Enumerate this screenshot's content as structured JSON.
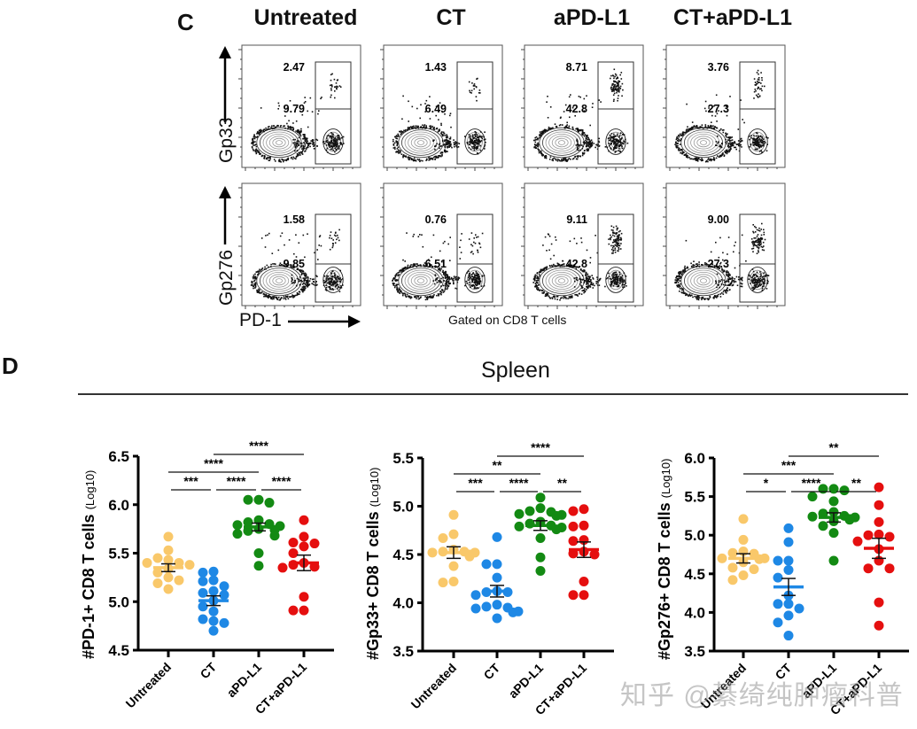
{
  "panel_c": {
    "letter": "C",
    "columns": [
      "Untreated",
      "CT",
      "aPD-L1",
      "CT+aPD-L1"
    ],
    "rows": [
      {
        "ylabel": "Gp33",
        "gates": [
          {
            "upper": "2.47",
            "lower": "9.79"
          },
          {
            "upper": "1.43",
            "lower": "6.49"
          },
          {
            "upper": "8.71",
            "lower": "42.8"
          },
          {
            "upper": "3.76",
            "lower": "27.3"
          }
        ]
      },
      {
        "ylabel": "Gp276",
        "gates": [
          {
            "upper": "1.58",
            "lower": "9.85"
          },
          {
            "upper": "0.76",
            "lower": "6.51"
          },
          {
            "upper": "9.11",
            "lower": "42.8"
          },
          {
            "upper": "9.00",
            "lower": "27.3"
          }
        ]
      }
    ],
    "xlabel": "PD-1",
    "gating_note": "Gated on CD8 T cells"
  },
  "panel_d": {
    "letter": "D",
    "section_title": "Spleen",
    "colors": {
      "Untreated": "#f9c86a",
      "CT": "#1e88e5",
      "aPD-L1": "#138a13",
      "CT+aPD-L1": "#e50f0f"
    }
  },
  "chart_data": [
    {
      "type": "scatter",
      "title": "",
      "ylabel_main": "#PD-1+ CD8 T cells",
      "ylabel_unit": "(Log10)",
      "categories": [
        "Untreated",
        "CT",
        "aPD-L1",
        "CT+aPD-L1"
      ],
      "ylim": [
        4.5,
        6.5
      ],
      "yticks": [
        "4.5",
        "5.0",
        "5.5",
        "6.0",
        "6.5"
      ],
      "yticks_values": [
        4.5,
        5.0,
        5.5,
        6.0,
        6.5
      ],
      "series": [
        {
          "name": "Untreated",
          "values": [
            5.67,
            5.53,
            5.45,
            5.43,
            5.4,
            5.4,
            5.38,
            5.34,
            5.3,
            5.25,
            5.22,
            5.19,
            5.13
          ],
          "mean": 5.35,
          "sem": 0.04
        },
        {
          "name": "CT",
          "values": [
            5.31,
            5.3,
            5.22,
            5.21,
            5.16,
            5.11,
            5.09,
            5.07,
            5.01,
            4.95,
            4.9,
            4.82,
            4.8,
            4.78,
            4.7
          ],
          "mean": 5.01,
          "sem": 0.05
        },
        {
          "name": "aPD-L1",
          "values": [
            6.05,
            6.05,
            6.02,
            5.84,
            5.82,
            5.8,
            5.79,
            5.78,
            5.75,
            5.74,
            5.73,
            5.7,
            5.68,
            5.5,
            5.37
          ],
          "mean": 5.77,
          "sem": 0.04
        },
        {
          "name": "CT+aPD-L1",
          "values": [
            5.84,
            5.67,
            5.61,
            5.6,
            5.57,
            5.5,
            5.4,
            5.38,
            5.36,
            5.35,
            5.05,
            4.91,
            4.91
          ],
          "mean": 5.4,
          "sem": 0.08
        }
      ],
      "significance": [
        {
          "from": "Untreated",
          "to": "CT",
          "label": "***",
          "level": 0
        },
        {
          "from": "CT",
          "to": "aPD-L1",
          "label": "****",
          "level": 0
        },
        {
          "from": "aPD-L1",
          "to": "CT+aPD-L1",
          "label": "****",
          "level": 0
        },
        {
          "from": "Untreated",
          "to": "aPD-L1",
          "label": "****",
          "level": 1
        },
        {
          "from": "CT",
          "to": "CT+aPD-L1",
          "label": "****",
          "level": 2
        }
      ]
    },
    {
      "type": "scatter",
      "title": "",
      "ylabel_main": "#Gp33+ CD8 T cells",
      "ylabel_unit": "(Log10)",
      "categories": [
        "Untreated",
        "CT",
        "aPD-L1",
        "CT+aPD-L1"
      ],
      "ylim": [
        3.5,
        5.5
      ],
      "yticks": [
        "3.5",
        "4.0",
        "4.5",
        "5.0",
        "5.5"
      ],
      "yticks_values": [
        3.5,
        4.0,
        4.5,
        5.0,
        5.5
      ],
      "series": [
        {
          "name": "Untreated",
          "values": [
            4.91,
            4.71,
            4.67,
            4.55,
            4.53,
            4.53,
            4.52,
            4.52,
            4.5,
            4.48,
            4.38,
            4.22,
            4.21
          ],
          "mean": 4.52,
          "sem": 0.06
        },
        {
          "name": "CT",
          "values": [
            4.68,
            4.4,
            4.4,
            4.26,
            4.12,
            4.11,
            4.11,
            4.08,
            3.98,
            3.96,
            3.95,
            3.94,
            3.91,
            3.9,
            3.84
          ],
          "mean": 4.12,
          "sem": 0.06
        },
        {
          "name": "aPD-L1",
          "values": [
            5.09,
            4.98,
            4.95,
            4.94,
            4.92,
            4.91,
            4.9,
            4.84,
            4.82,
            4.8,
            4.79,
            4.78,
            4.76,
            4.67,
            4.47,
            4.33
          ],
          "mean": 4.8,
          "sem": 0.05
        },
        {
          "name": "CT+aPD-L1",
          "values": [
            4.97,
            4.95,
            4.8,
            4.79,
            4.65,
            4.64,
            4.53,
            4.51,
            4.5,
            4.22,
            4.08,
            4.08
          ],
          "mean": 4.55,
          "sem": 0.08
        }
      ],
      "significance": [
        {
          "from": "Untreated",
          "to": "CT",
          "label": "***",
          "level": 0
        },
        {
          "from": "CT",
          "to": "aPD-L1",
          "label": "****",
          "level": 0
        },
        {
          "from": "aPD-L1",
          "to": "CT+aPD-L1",
          "label": "**",
          "level": 0
        },
        {
          "from": "Untreated",
          "to": "aPD-L1",
          "label": "**",
          "level": 1
        },
        {
          "from": "CT",
          "to": "CT+aPD-L1",
          "label": "****",
          "level": 2
        }
      ]
    },
    {
      "type": "scatter",
      "title": "",
      "ylabel_main": "#Gp276+ CD8 T cells",
      "ylabel_unit": "(Log10)",
      "categories": [
        "Untreated",
        "CT",
        "aPD-L1",
        "CT+aPD-L1"
      ],
      "ylim": [
        3.5,
        6.0
      ],
      "yticks": [
        "3.5",
        "4.0",
        "4.5",
        "5.0",
        "5.5",
        "6.0"
      ],
      "yticks_values": [
        3.5,
        4.0,
        4.5,
        5.0,
        5.5,
        6.0
      ],
      "series": [
        {
          "name": "Untreated",
          "values": [
            5.21,
            4.94,
            4.79,
            4.77,
            4.76,
            4.7,
            4.7,
            4.69,
            4.65,
            4.58,
            4.56,
            4.48,
            4.42
          ],
          "mean": 4.7,
          "sem": 0.06
        },
        {
          "name": "CT",
          "values": [
            5.09,
            4.91,
            4.67,
            4.67,
            4.55,
            4.45,
            4.22,
            4.11,
            4.11,
            4.05,
            3.96,
            3.87,
            3.7
          ],
          "mean": 4.33,
          "sem": 0.11
        },
        {
          "name": "aPD-L1",
          "values": [
            5.6,
            5.6,
            5.58,
            5.5,
            5.44,
            5.3,
            5.28,
            5.25,
            5.24,
            5.23,
            5.21,
            5.2,
            5.18,
            5.12,
            5.03,
            4.67
          ],
          "mean": 5.23,
          "sem": 0.06
        },
        {
          "name": "CT+aPD-L1",
          "values": [
            5.62,
            5.39,
            5.17,
            5.01,
            5.0,
            4.98,
            4.92,
            4.82,
            4.67,
            4.57,
            4.57,
            4.13,
            3.83
          ],
          "mean": 4.83,
          "sem": 0.13
        }
      ],
      "significance": [
        {
          "from": "Untreated",
          "to": "CT",
          "label": "*",
          "level": 0
        },
        {
          "from": "CT",
          "to": "aPD-L1",
          "label": "****",
          "level": 0
        },
        {
          "from": "aPD-L1",
          "to": "CT+aPD-L1",
          "label": "**",
          "level": 0
        },
        {
          "from": "Untreated",
          "to": "aPD-L1",
          "label": "***",
          "level": 1
        },
        {
          "from": "CT",
          "to": "CT+aPD-L1",
          "label": "**",
          "level": 2
        }
      ]
    }
  ],
  "watermark": "知乎 @綦绮纯肿瘤科普"
}
